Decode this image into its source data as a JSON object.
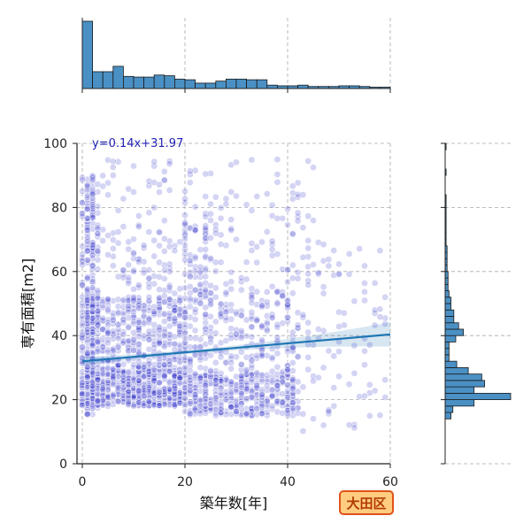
{
  "chart_data": {
    "type": "scatter",
    "xlabel": "築年数[年]",
    "ylabel": "専有面積[m2]",
    "xlim": [
      0,
      60
    ],
    "ylim": [
      0,
      100
    ],
    "x_ticks": [
      0,
      20,
      40,
      60
    ],
    "y_ticks": [
      0,
      20,
      40,
      60,
      80,
      100
    ],
    "grid": true,
    "annotation": "y=0.14x+31.97",
    "regression": {
      "slope": 0.14,
      "intercept": 31.97
    },
    "badge": "大田区",
    "point_color": "#3a3acc",
    "line_color": "#1f77b4",
    "hist_color": "#4a90c4",
    "top_histogram": {
      "bin_edges": [
        0,
        2,
        4,
        6,
        8,
        10,
        12,
        14,
        16,
        18,
        20,
        22,
        24,
        26,
        28,
        30,
        32,
        34,
        36,
        38,
        40,
        42,
        44,
        46,
        48,
        50,
        52,
        54,
        56,
        58,
        60
      ],
      "counts": [
        100,
        25,
        25,
        33,
        18,
        17,
        17,
        20,
        19,
        14,
        13,
        8,
        8,
        11,
        14,
        14,
        13,
        13,
        5,
        4,
        4,
        5,
        3,
        3,
        3,
        4,
        4,
        3,
        2,
        2
      ]
    },
    "right_histogram": {
      "bin_edges": [
        14,
        16,
        18,
        20,
        22,
        24,
        26,
        28,
        30,
        32,
        34,
        36,
        38,
        40,
        42,
        44,
        46,
        48,
        50,
        52,
        54,
        56,
        58,
        60,
        62,
        64,
        66,
        68,
        70,
        72,
        74,
        76,
        78,
        80,
        82,
        84,
        86,
        88,
        90,
        92,
        94,
        96,
        98,
        100
      ],
      "counts": [
        6,
        8,
        30,
        68,
        30,
        41,
        38,
        24,
        12,
        4,
        4,
        4,
        11,
        19,
        14,
        9,
        9,
        6,
        6,
        4,
        3,
        3,
        3,
        2,
        2,
        2,
        2,
        1,
        1,
        1,
        1,
        1,
        1,
        1,
        1,
        0,
        0,
        0,
        1,
        0,
        0,
        0,
        1
      ]
    },
    "point_clusters": [
      {
        "x": [
          0,
          3
        ],
        "y": [
          15,
          90
        ],
        "n": 240
      },
      {
        "x": [
          0,
          20
        ],
        "y": [
          18,
          30
        ],
        "n": 560
      },
      {
        "x": [
          0,
          20
        ],
        "y": [
          30,
          52
        ],
        "n": 420
      },
      {
        "x": [
          0,
          25
        ],
        "y": [
          52,
          75
        ],
        "n": 150
      },
      {
        "x": [
          0,
          25
        ],
        "y": [
          75,
          95
        ],
        "n": 40
      },
      {
        "x": [
          20,
          42
        ],
        "y": [
          15,
          28
        ],
        "n": 380
      },
      {
        "x": [
          20,
          42
        ],
        "y": [
          28,
          55
        ],
        "n": 260
      },
      {
        "x": [
          20,
          45
        ],
        "y": [
          55,
          95
        ],
        "n": 110
      },
      {
        "x": [
          42,
          60
        ],
        "y": [
          10,
          70
        ],
        "n": 90
      }
    ]
  }
}
